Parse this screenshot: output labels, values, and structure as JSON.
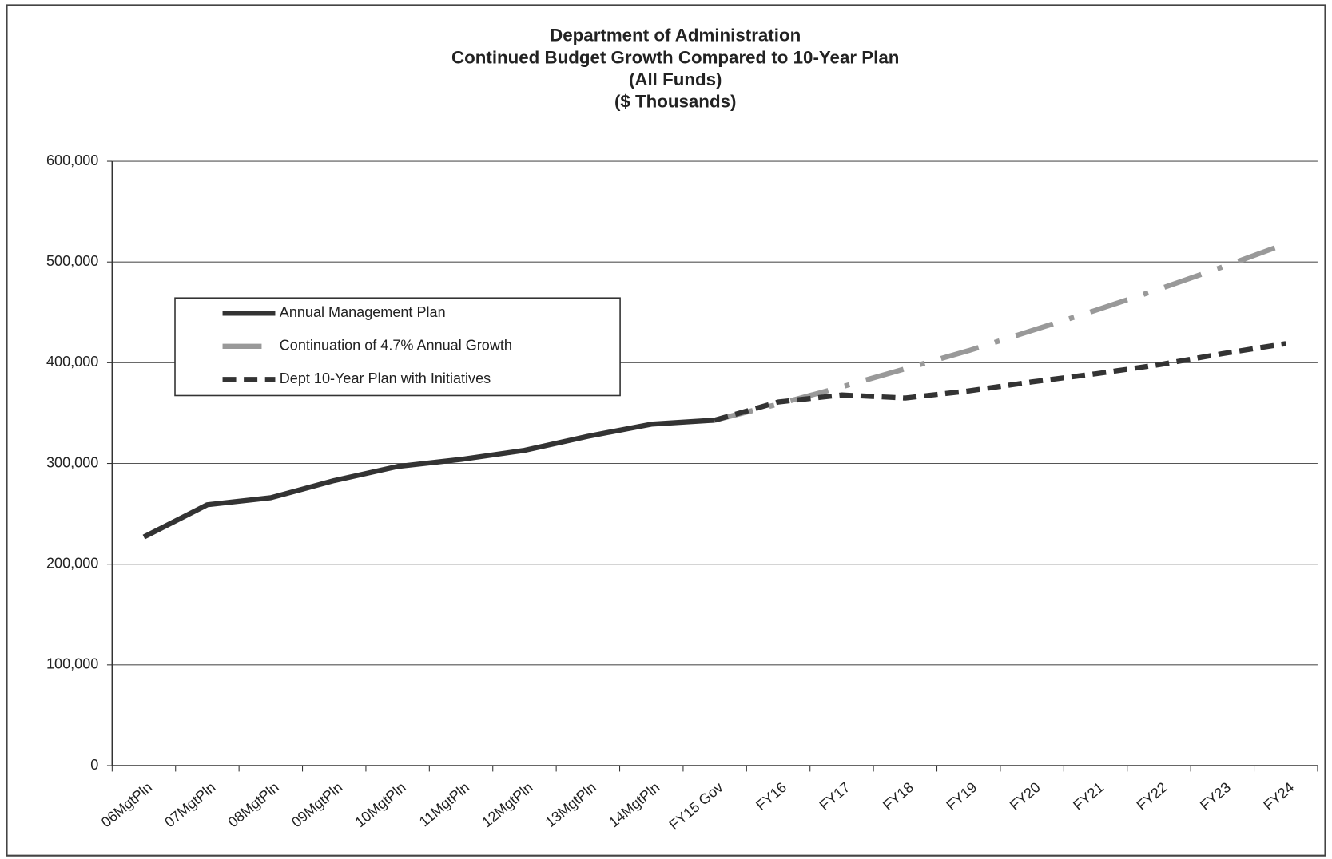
{
  "chart_data": {
    "type": "line",
    "title": [
      "Department of Administration",
      "Continued Budget Growth Compared to 10-Year Plan",
      "(All Funds)",
      "($ Thousands)"
    ],
    "categories": [
      "06MgtPln",
      "07MgtPln",
      "08MgtPln",
      "09MgtPln",
      "10MgtPln",
      "11MgtPln",
      "12MgtPln",
      "13MgtPln",
      "14MgtPln",
      "FY15 Gov",
      "FY16",
      "FY17",
      "FY18",
      "FY19",
      "FY20",
      "FY21",
      "FY22",
      "FY23",
      "FY24"
    ],
    "series": [
      {
        "name": "Annual Management Plan",
        "color": "#333333",
        "line_style": "solid",
        "values": [
          227000,
          259000,
          266000,
          283000,
          297000,
          304000,
          313000,
          327000,
          339000,
          343000,
          null,
          null,
          null,
          null,
          null,
          null,
          null,
          null,
          null
        ]
      },
      {
        "name": "Continuation of 4.7% Annual Growth",
        "color": "#999999",
        "line_style": "dashdot",
        "values": [
          null,
          null,
          null,
          null,
          null,
          null,
          null,
          null,
          null,
          343000,
          359000,
          376000,
          394000,
          412000,
          432000,
          452000,
          473000,
          495000,
          518000
        ]
      },
      {
        "name": "Dept 10-Year Plan with Initiatives",
        "color": "#333333",
        "line_style": "dash",
        "values": [
          null,
          null,
          null,
          null,
          null,
          null,
          null,
          null,
          null,
          343000,
          361000,
          368000,
          365000,
          372000,
          381000,
          389000,
          398000,
          409000,
          419000
        ]
      }
    ],
    "ylim": [
      0,
      600000
    ],
    "yticks": [
      0,
      {
        "value": 100000,
        "label": "100,000"
      },
      {
        "value": 200000,
        "label": "200,000"
      },
      {
        "value": 300000,
        "label": "300,000"
      },
      {
        "value": 400000,
        "label": "400,000"
      },
      {
        "value": 500000,
        "label": "500,000"
      },
      {
        "value": 600000,
        "label": "600,000"
      }
    ],
    "grid": true,
    "legend": "upper left"
  }
}
